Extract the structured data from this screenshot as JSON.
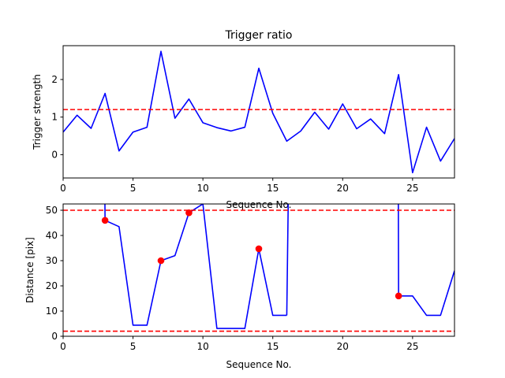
{
  "chart_data": [
    {
      "type": "line",
      "title": "Trigger ratio",
      "xlabel": "Sequence No.",
      "ylabel": "Trigger strength",
      "xlim": [
        0,
        28
      ],
      "ylim": [
        -0.62,
        2.9
      ],
      "xticks": [
        0,
        5,
        10,
        15,
        20,
        25
      ],
      "yticks": [
        0,
        1,
        2
      ],
      "x": [
        0,
        1,
        2,
        3,
        4,
        5,
        6,
        7,
        8,
        9,
        10,
        11,
        12,
        13,
        14,
        15,
        16,
        17,
        18,
        19,
        20,
        21,
        22,
        23,
        24,
        25,
        26,
        27,
        28
      ],
      "series": [
        {
          "color": "#0000ff",
          "values": [
            0.6,
            1.05,
            0.7,
            1.63,
            0.1,
            0.6,
            0.73,
            2.75,
            0.97,
            1.48,
            0.85,
            0.72,
            0.63,
            0.73,
            2.3,
            1.1,
            0.36,
            0.63,
            1.13,
            0.68,
            1.35,
            0.69,
            0.95,
            0.56,
            2.13,
            -0.48,
            0.73,
            -0.17,
            0.43
          ]
        }
      ],
      "hlines": [
        {
          "y": 1.2,
          "color": "#ff0000",
          "style": "dashed"
        }
      ],
      "grid": false
    },
    {
      "type": "line",
      "title": "",
      "xlabel": "Sequence No.",
      "ylabel": "Distance [pix]",
      "xlim": [
        0,
        28
      ],
      "ylim": [
        0,
        52.5
      ],
      "xticks": [
        0,
        5,
        10,
        15,
        20,
        25
      ],
      "yticks": [
        0,
        10,
        20,
        30,
        40,
        50
      ],
      "x": [
        0,
        1,
        2,
        3,
        4,
        5,
        6,
        7,
        8,
        9,
        10,
        11,
        12,
        13,
        14,
        15,
        16,
        17,
        18,
        19,
        20,
        21,
        22,
        23,
        24,
        25,
        26,
        27,
        28
      ],
      "series": [
        {
          "color": "#0000ff",
          "values": [
            null,
            null,
            null,
            46,
            43.5,
            4.4,
            4.4,
            30,
            32,
            49,
            52.5,
            3.1,
            3.1,
            3.1,
            34.7,
            8.3,
            8.3,
            null,
            null,
            null,
            null,
            null,
            null,
            null,
            16,
            16,
            8.3,
            8.3,
            26
          ],
          "leading": [
            {
              "from": [
                2.98,
                60
              ],
              "to": [
                3,
                46
              ]
            },
            {
              "from": [
                16,
                8.3
              ],
              "to": [
                16.12,
                60
              ]
            },
            {
              "from": [
                23.98,
                60
              ],
              "to": [
                24,
                16
              ]
            }
          ]
        }
      ],
      "markers": {
        "color": "#ff0000",
        "points": [
          [
            3,
            46
          ],
          [
            7,
            30
          ],
          [
            9,
            49
          ],
          [
            14,
            34.7
          ],
          [
            24,
            16
          ]
        ]
      },
      "hlines": [
        {
          "y": 50,
          "color": "#ff0000",
          "style": "dashed"
        },
        {
          "y": 2,
          "color": "#ff0000",
          "style": "dashed"
        }
      ],
      "grid": false
    }
  ]
}
